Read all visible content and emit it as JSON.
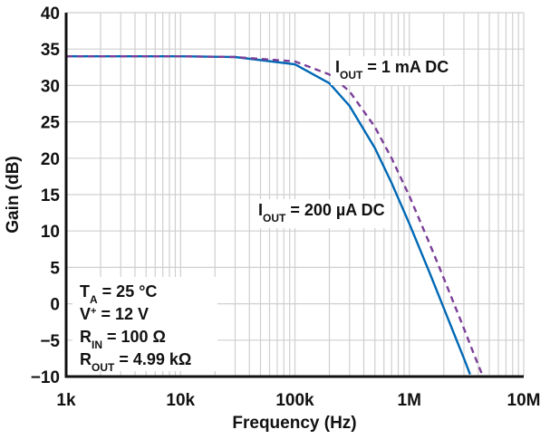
{
  "chart_data": {
    "type": "line",
    "xlabel": "Frequency (Hz)",
    "ylabel": "Gain (dB)",
    "xscale": "log",
    "xlim": [
      1000,
      10000000
    ],
    "ylim": [
      -10,
      40
    ],
    "grid": true,
    "x_tick_labels": [
      "1k",
      "10k",
      "100k",
      "1M",
      "10M"
    ],
    "x_ticks": [
      1000,
      10000,
      100000,
      1000000,
      10000000
    ],
    "y_ticks": [
      40,
      35,
      30,
      25,
      20,
      15,
      10,
      5,
      0,
      -5,
      -10
    ],
    "y_tick_labels": [
      "40",
      "35",
      "30",
      "25",
      "20",
      "15",
      "10",
      "5",
      "0",
      "−5",
      "−10"
    ],
    "series": [
      {
        "name_main": "I",
        "name_sub": "OUT",
        "name_rest": " = 200 µA DC",
        "color": "#0068b5",
        "style": "solid",
        "x": [
          1000,
          10000,
          30000,
          100000,
          200000,
          300000,
          500000,
          700000,
          1000000,
          1500000,
          2000000,
          2500000,
          3000000,
          3400000
        ],
        "y": [
          34.0,
          34.0,
          33.9,
          32.9,
          30.3,
          27.2,
          21.4,
          16.6,
          11.0,
          4.3,
          -0.6,
          -4.4,
          -7.5,
          -9.7
        ]
      },
      {
        "name_main": "I",
        "name_sub": "OUT",
        "name_rest": " = 1 mA DC",
        "color": "#7b3f98",
        "style": "dashed",
        "x": [
          1000,
          10000,
          30000,
          100000,
          200000,
          300000,
          500000,
          700000,
          1000000,
          1500000,
          2000000,
          2500000,
          3000000,
          3500000,
          4000000,
          4300000
        ],
        "y": [
          34.0,
          34.0,
          33.9,
          33.3,
          31.5,
          29.2,
          24.3,
          20.0,
          14.8,
          8.3,
          3.5,
          -0.3,
          -3.4,
          -6.1,
          -8.4,
          -9.6
        ]
      }
    ],
    "conditions": [
      {
        "main": "T",
        "sub": "A",
        "sup": "",
        "rest": " = 25 °C"
      },
      {
        "main": "V",
        "sub": "",
        "sup": "+",
        "rest": " = 12 V"
      },
      {
        "main": "R",
        "sub": "IN",
        "sup": "",
        "rest": " = 100 Ω"
      },
      {
        "main": "R",
        "sub": "OUT",
        "sup": "",
        "rest": " = 4.99 kΩ"
      }
    ]
  }
}
